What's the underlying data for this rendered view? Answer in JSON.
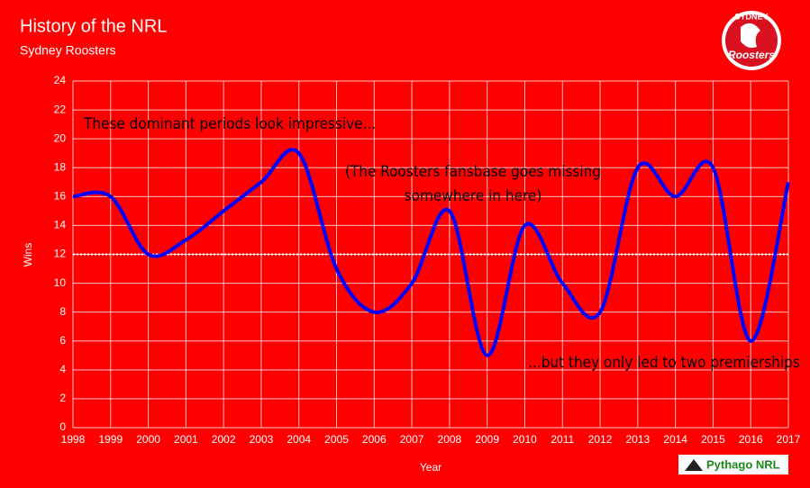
{
  "chart_data": {
    "type": "line",
    "title": "History of the NRL",
    "subtitle": "Sydney Roosters",
    "x_label": "Year",
    "y_label": "Wins",
    "x": [
      1998,
      1999,
      2000,
      2001,
      2002,
      2003,
      2004,
      2005,
      2006,
      2007,
      2008,
      2009,
      2010,
      2011,
      2012,
      2013,
      2014,
      2015,
      2016,
      2017
    ],
    "series": [
      {
        "name": "Wins",
        "color": "#0000ff",
        "values": [
          16,
          16,
          12,
          13,
          15,
          17,
          19,
          11,
          8,
          10,
          15,
          5,
          14,
          10,
          8,
          18,
          16,
          18,
          6,
          17
        ]
      }
    ],
    "xlim": [
      1998,
      2017
    ],
    "xticks": [
      1998,
      1999,
      2000,
      2001,
      2002,
      2003,
      2004,
      2005,
      2006,
      2007,
      2008,
      2009,
      2010,
      2011,
      2012,
      2013,
      2014,
      2015,
      2016,
      2017
    ],
    "ylim": [
      0,
      24
    ],
    "yticks": [
      0,
      2,
      4,
      6,
      8,
      10,
      12,
      14,
      16,
      18,
      20,
      22,
      24
    ],
    "grid": true,
    "smooth": true,
    "reference_line": {
      "value": 12,
      "color": "#ffffff"
    },
    "annotations": [
      "These dominant periods look impressive...",
      "(The Roosters fansbase goes missing",
      "somewhere in here)",
      "...but they only led to two premierships"
    ]
  },
  "logo": {
    "top": "SYDNEY",
    "script": "Roosters"
  },
  "credit": "Pythago NRL"
}
